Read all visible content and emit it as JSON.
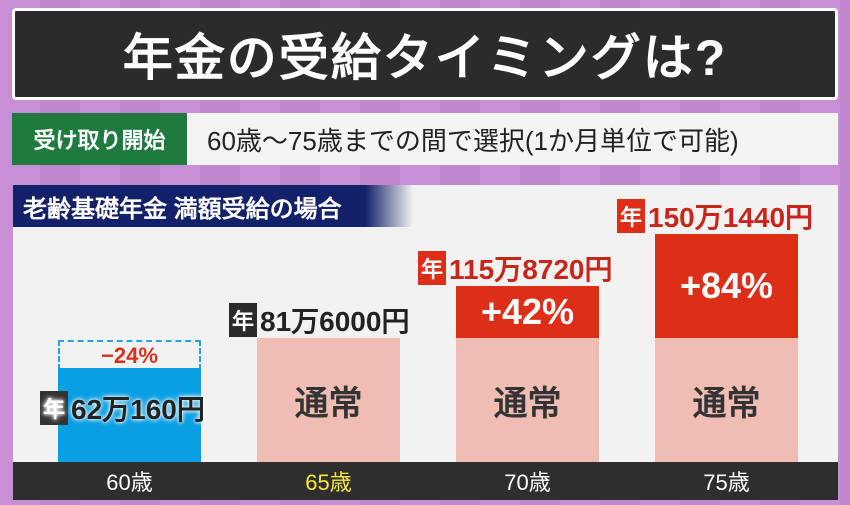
{
  "title": "年金の受給タイミングは?",
  "sub": {
    "label": "受け取り開始",
    "text": "60歳〜75歳までの間で選択(1か月単位で可能)"
  },
  "colors": {
    "base": "#f0bdb5",
    "increase": "#dd2e18",
    "decrease": "#0a9fe2"
  },
  "chart_data": {
    "type": "bar",
    "title": "老齢基礎年金 満額受給の場合",
    "categories": [
      "60歳",
      "65歳",
      "70歳",
      "75歳"
    ],
    "highlight_category": "65歳",
    "values": [
      62.016,
      81.6,
      115.872,
      150.144
    ],
    "unit": "万円/年",
    "value_labels": [
      {
        "prefix": "年",
        "text": "62万160円"
      },
      {
        "prefix": "年",
        "text": "81万6000円"
      },
      {
        "prefix": "年",
        "text": "115万8720円"
      },
      {
        "prefix": "年",
        "text": "150万1440円"
      }
    ],
    "change_labels": [
      "−24%",
      "",
      "+42%",
      "+84%"
    ],
    "base_label": "通常",
    "ylim": [
      0,
      180
    ]
  }
}
